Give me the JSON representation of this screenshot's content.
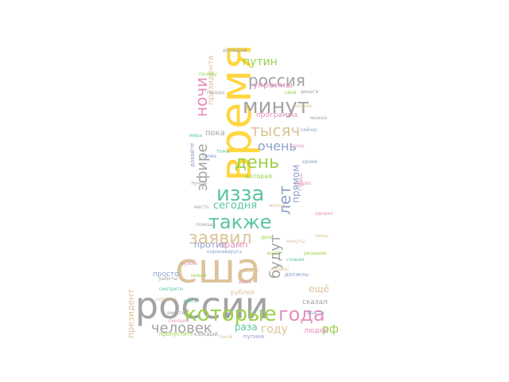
{
  "words": [
    {
      "text": "сша",
      "color": "#dcc39b"
    },
    {
      "text": "россии",
      "color": "#a3a3a3"
    },
    {
      "text": "время",
      "color": "#ffd63f"
    },
    {
      "text": "минут",
      "color": "#a3a3a3"
    },
    {
      "text": "которые",
      "color": "#9ad24a"
    },
    {
      "text": "года",
      "color": "#e58fbe"
    },
    {
      "text": "также",
      "color": "#5cc4a3"
    },
    {
      "text": "изза",
      "color": "#5cc4a3"
    },
    {
      "text": "заявил",
      "color": "#dcc39b"
    },
    {
      "text": "день",
      "color": "#9ad24a"
    },
    {
      "text": "тысяч",
      "color": "#dcc39b"
    },
    {
      "text": "человек",
      "color": "#a3a3a3"
    },
    {
      "text": "россия",
      "color": "#a3a3a3"
    },
    {
      "text": "очень",
      "color": "#8da0cb"
    },
    {
      "text": "ночи",
      "color": "#e58fbe"
    },
    {
      "text": "эфире",
      "color": "#a3a3a3"
    },
    {
      "text": "лет",
      "color": "#8da0cb"
    },
    {
      "text": "будут",
      "color": "#a3a3a3"
    },
    {
      "text": "путин",
      "color": "#9ad24a"
    },
    {
      "text": "сегодня",
      "color": "#5cc4a3"
    },
    {
      "text": "раза",
      "color": "#5cc4a3"
    },
    {
      "text": "году",
      "color": "#dcc39b"
    },
    {
      "text": "украины",
      "color": "#e58fbe"
    },
    {
      "text": "президента",
      "color": "#dcc39b"
    },
    {
      "text": "прямом",
      "color": "#8da0cb"
    },
    {
      "text": "против",
      "color": "#8da0cb"
    },
    {
      "text": "трамп",
      "color": "#e58fbe"
    },
    {
      "text": "ещё",
      "color": "#dcc39b"
    },
    {
      "text": "рф",
      "color": "#9ad24a"
    },
    {
      "text": "людей",
      "color": "#e58fbe"
    },
    {
      "text": "президент",
      "color": "#dcc39b"
    },
    {
      "text": "сказал",
      "color": "#a3a3a3"
    },
    {
      "text": "просто",
      "color": "#8da0cb"
    },
    {
      "text": "пока",
      "color": "#a3a3a3"
    },
    {
      "text": "которая",
      "color": "#9ad24a"
    },
    {
      "text": "программа",
      "color": "#e58fbe"
    },
    {
      "text": "пропустите",
      "color": "#9ad24a"
    },
    {
      "text": "каждый",
      "color": "#a3a3a3"
    },
    {
      "text": "работы",
      "color": "#a3a3a3"
    },
    {
      "text": "долларов",
      "color": "#8da0cb"
    },
    {
      "text": "рублей",
      "color": "#dcc39b"
    },
    {
      "text": "деньги",
      "color": "#a3a3a3"
    },
    {
      "text": "страны",
      "color": "#dcc39b"
    },
    {
      "text": "должны",
      "color": "#8da0cb"
    },
    {
      "text": "нужно",
      "color": "#e58fbe"
    },
    {
      "text": "свой",
      "color": "#9ad24a"
    },
    {
      "text": "москве",
      "color": "#dcc39b"
    },
    {
      "text": "путина",
      "color": "#8da0cb"
    },
    {
      "text": "города",
      "color": "#a3a3a3"
    },
    {
      "text": "мира",
      "color": "#5cc4a3"
    },
    {
      "text": "давайте",
      "color": "#8da0cb"
    },
    {
      "text": "новости",
      "color": "#dcc39b"
    },
    {
      "text": "страна",
      "color": "#e58fbe"
    },
    {
      "text": "решение",
      "color": "#9ad24a"
    },
    {
      "text": "коронавируса",
      "color": "#8da0cb"
    },
    {
      "text": "место",
      "color": "#a3a3a3"
    },
    {
      "text": "минуты",
      "color": "#dcc39b"
    },
    {
      "text": "смотрите",
      "color": "#5cc4a3"
    },
    {
      "text": "вопрос",
      "color": "#e58fbe"
    },
    {
      "text": "дела",
      "color": "#9ad24a"
    },
    {
      "text": "жизни",
      "color": "#dcc39b"
    },
    {
      "text": "власти",
      "color": "#8da0cb"
    },
    {
      "text": "вместе",
      "color": "#a3a3a3"
    },
    {
      "text": "здесь",
      "color": "#5cc4a3"
    },
    {
      "text": "сразу",
      "color": "#e58fbe"
    },
    {
      "text": "почему",
      "color": "#9ad24a"
    },
    {
      "text": "которой",
      "color": "#dcc39b"
    },
    {
      "text": "сейчас",
      "color": "#8da0cb"
    },
    {
      "text": "лучше",
      "color": "#a3a3a3"
    },
    {
      "text": "сколько",
      "color": "#e58fbe"
    },
    {
      "text": "тоже",
      "color": "#5cc4a3"
    },
    {
      "text": "всего",
      "color": "#9ad24a"
    },
    {
      "text": "такой",
      "color": "#dcc39b"
    },
    {
      "text": "кроме",
      "color": "#8da0cb"
    },
    {
      "text": "помощь",
      "color": "#a3a3a3"
    },
    {
      "text": "дома",
      "color": "#e58fbe"
    },
    {
      "text": "словам",
      "color": "#5cc4a3"
    },
    {
      "text": "новый",
      "color": "#9ad24a"
    },
    {
      "text": "лишь",
      "color": "#dcc39b"
    },
    {
      "text": "снова",
      "color": "#8da0cb"
    },
    {
      "text": "можно",
      "color": "#a3a3a3"
    },
    {
      "text": "однако",
      "color": "#e58fbe"
    }
  ]
}
